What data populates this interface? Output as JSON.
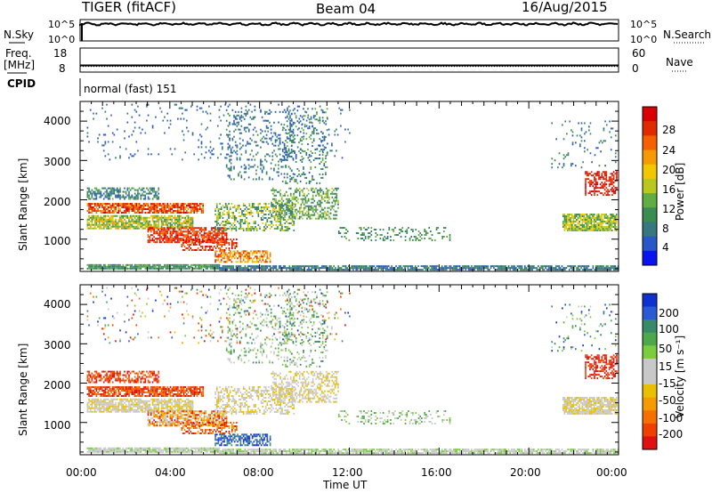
{
  "header": {
    "radar": "TIGER (fitACF)",
    "beam": "Beam 04",
    "date": "16/Aug/2015"
  },
  "top_panels": {
    "nsky_label": "N.Sky",
    "nsky_ticks": [
      "10^5",
      "10^0"
    ],
    "nsearch_label": "N.Search",
    "nsearch_ticks": [
      "10^5",
      "10^0"
    ],
    "freq_label_1": "Freq.",
    "freq_label_2": "[MHz]",
    "freq_ticks": [
      "18",
      "8"
    ],
    "nave_label": "Nave",
    "nave_ticks": [
      "60",
      "0"
    ],
    "cpid_label": "CPID",
    "cpid_value": "normal (fast) 151"
  },
  "chart_data": [
    {
      "type": "heatmap",
      "title": "",
      "xlabel": "",
      "ylabel": "Slant Range [km]",
      "xlim": [
        0,
        24
      ],
      "ylim": [
        180,
        4500
      ],
      "y_ticks": [
        "1000",
        "2000",
        "3000",
        "4000"
      ],
      "colorbar": {
        "label": "Power [dB]",
        "range": [
          0,
          32
        ],
        "ticks": [
          "4",
          "8",
          "12",
          "16",
          "20",
          "24",
          "28"
        ],
        "colors": [
          "#0a14f0",
          "#2858c8",
          "#37787e",
          "#3a8c50",
          "#62ad42",
          "#b8c81e",
          "#f0c800",
          "#f59a00",
          "#f56000",
          "#e02a00",
          "#d80000"
        ]
      }
    },
    {
      "type": "heatmap",
      "title": "",
      "xlabel": "Time UT",
      "ylabel": "Slant Range [km]",
      "xlim": [
        0,
        24
      ],
      "ylim": [
        180,
        4500
      ],
      "x_ticks": [
        "00:00",
        "04:00",
        "08:00",
        "12:00",
        "16:00",
        "20:00",
        "00:00"
      ],
      "y_ticks": [
        "1000",
        "2000",
        "3000",
        "4000"
      ],
      "colorbar": {
        "label": "Velocity [m s⁻¹]",
        "ticks": [
          "200",
          "100",
          "50",
          "15",
          "-15",
          "-50",
          "-100",
          "-200"
        ],
        "colors": [
          "#1030d0",
          "#2a5ad8",
          "#3a8a6a",
          "#4ca84a",
          "#7ccc40",
          "#c8c8c8",
          "#c8c8c8",
          "#e8c000",
          "#f59a00",
          "#f57000",
          "#f04000",
          "#e01010"
        ]
      }
    }
  ]
}
